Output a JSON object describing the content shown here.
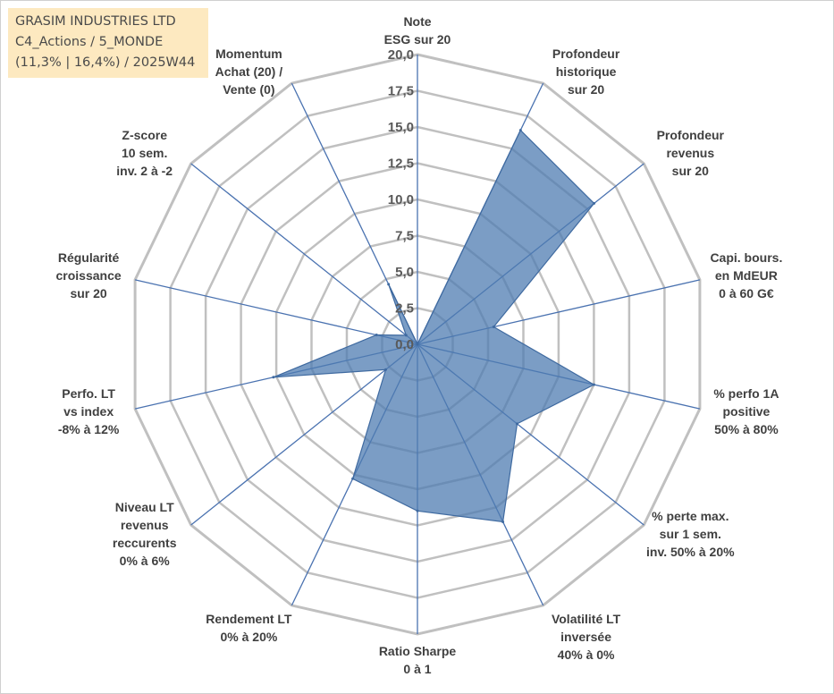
{
  "header": {
    "title_line1": "GRASIM INDUSTRIES LTD",
    "title_line2": "C4_Actions / 5_MONDE",
    "title_line3": "(11,3% | 16,4%) / 2025W44"
  },
  "chart_data": {
    "type": "radar",
    "rmin": 0,
    "rmax": 20,
    "tick_step": 2.5,
    "grid": true,
    "legend": "none",
    "tick_labels": [
      "0,0",
      "2,5",
      "5,0",
      "7,5",
      "10,0",
      "12,5",
      "15,0",
      "17,5",
      "20,0"
    ],
    "axes": [
      [
        "Note",
        "ESG sur 20"
      ],
      [
        "Profondeur",
        "historique",
        "sur 20"
      ],
      [
        "Profondeur",
        "revenus",
        "sur 20"
      ],
      [
        "Capi. bours.",
        "en MdEUR",
        "0 à 60 G€"
      ],
      [
        "% perfo 1A",
        "positive",
        "50% à 80%"
      ],
      [
        "% perte max.",
        "sur 1 sem.",
        "inv. 50% à 20%"
      ],
      [
        "Volatilité LT",
        "inversée",
        "40% à 0%"
      ],
      [
        "Ratio Sharpe",
        "0 à 1"
      ],
      [
        "Rendement LT",
        "0% à 20%"
      ],
      [
        "Niveau LT",
        "revenus",
        "reccurents",
        "0% à 6%"
      ],
      [
        "Perfo. LT",
        "vs index",
        "-8% à 12%"
      ],
      [
        "Régularité",
        "croissance",
        "sur 20"
      ],
      [
        "Z-score",
        "10 sem.",
        "inv. 2 à -2"
      ],
      [
        "Momentum",
        "Achat (20) /",
        "Vente (0)"
      ]
    ],
    "values": [
      0,
      16.4,
      15.6,
      5.4,
      12.5,
      8.8,
      13.6,
      11.5,
      10.3,
      2.8,
      10.2,
      2.9,
      1.0,
      4.6
    ],
    "colors": {
      "fill": "#4f7cb1",
      "stroke": "#3f6aa0",
      "spoke": "#4a72b0",
      "grid": "#c0c0c0"
    }
  }
}
